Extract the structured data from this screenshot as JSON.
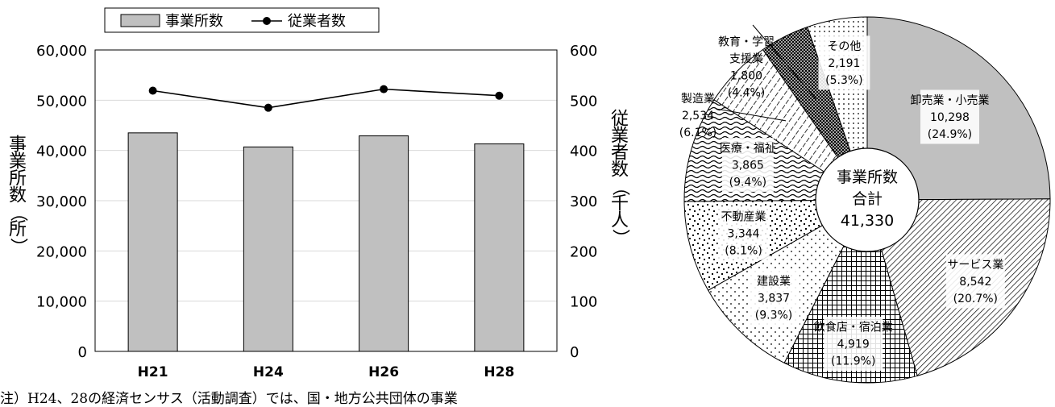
{
  "chart_data": [
    {
      "type": "bar",
      "categories": [
        "H21",
        "H24",
        "H26",
        "H28"
      ],
      "series": [
        {
          "name": "事業所数",
          "kind": "bar",
          "axis": "left",
          "values": [
            43500,
            40700,
            42900,
            41300
          ]
        },
        {
          "name": "従業者数",
          "kind": "line",
          "axis": "right",
          "values": [
            519,
            485,
            522,
            509
          ]
        }
      ],
      "ylim": [
        0,
        60000
      ],
      "y_ticks": [
        "0",
        "10,000",
        "20,000",
        "30,000",
        "40,000",
        "50,000",
        "60,000"
      ],
      "y_tick_values": [
        0,
        10000,
        20000,
        30000,
        40000,
        50000,
        60000
      ],
      "y2lim": [
        0,
        600
      ],
      "y2_ticks": [
        "0",
        "100",
        "200",
        "300",
        "400",
        "500",
        "600"
      ],
      "y2_tick_values": [
        0,
        100,
        200,
        300,
        400,
        500,
        600
      ],
      "ylabel": "事業所数（所）",
      "y2label": "従業者数（千人）",
      "grid": true,
      "legend": "top",
      "colors": {
        "bar": "#c0c0c0",
        "line": "#000000",
        "grid": "#d9d9d9"
      }
    },
    {
      "type": "pie",
      "center_label": [
        "事業所数",
        "合計",
        "41,330"
      ],
      "slices": [
        {
          "label": "卸売業・小売業",
          "value": 10298,
          "value_text": "10,298",
          "pct_text": "(24.9%)",
          "pattern": "solid-gray"
        },
        {
          "label": "サービス業",
          "value": 8542,
          "value_text": "8,542",
          "pct_text": "(20.7%)",
          "pattern": "dense-diagonal"
        },
        {
          "label": "飲食店・宿泊業",
          "value": 4919,
          "value_text": "4,919",
          "pct_text": "(11.9%)",
          "pattern": "grid"
        },
        {
          "label": "建設業",
          "value": 3837,
          "value_text": "3,837",
          "pct_text": "(9.3%)",
          "pattern": "sparse-dots"
        },
        {
          "label": "不動産業",
          "value": 3344,
          "value_text": "3,344",
          "pct_text": "(8.1%)",
          "pattern": "confetti"
        },
        {
          "label": "医療・福祉",
          "value": 3865,
          "value_text": "3,865",
          "pct_text": "(9.4%)",
          "pattern": "wave"
        },
        {
          "label": "製造業",
          "value": 2534,
          "value_text": "2,534",
          "pct_text": "(6.1%)",
          "pattern": "dashed-diagonal"
        },
        {
          "label": "教育・学習支援業",
          "value": 1800,
          "value_text": "1,800",
          "pct_text": "(4.4%)",
          "pattern": "crosshatch"
        },
        {
          "label": "その他",
          "value": 2191,
          "value_text": "2,191",
          "pct_text": "(5.3%)",
          "pattern": "dots"
        }
      ]
    }
  ],
  "footnote": "注）H24、28の経済センサス（活動調査）では、国・地方公共団体の事業"
}
